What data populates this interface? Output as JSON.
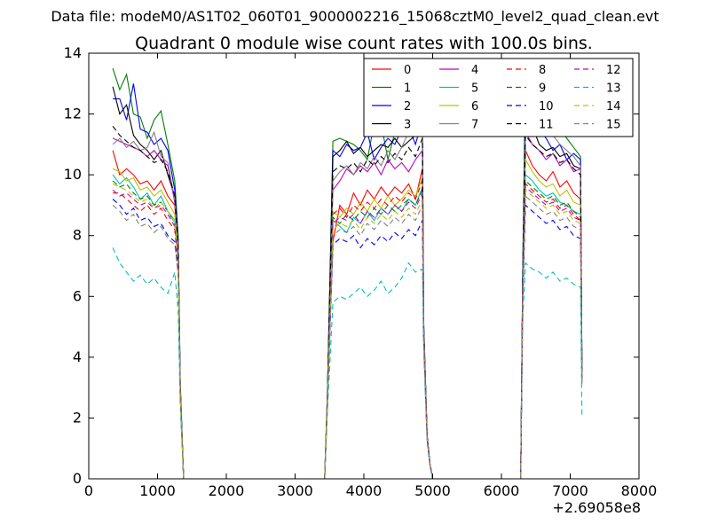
{
  "figure": {
    "suptitle": "Data file: modeM0/AS1T02_060T01_9000002216_15068cztM0_level2_quad_clean.evt"
  },
  "chart_data": {
    "type": "line",
    "title": "Quadrant 0 module wise count rates with 100.0s bins.",
    "xlabel": "",
    "ylabel": "",
    "xlim": [
      0,
      8000
    ],
    "ylim": [
      0,
      14
    ],
    "xticks": [
      0,
      1000,
      2000,
      3000,
      4000,
      5000,
      6000,
      7000,
      8000
    ],
    "yticks": [
      0,
      2,
      4,
      6,
      8,
      10,
      12,
      14
    ],
    "x_offset_label": "+2.69058e8",
    "grid": false,
    "legend": {
      "position": "top-right",
      "columns": 4
    },
    "x": [
      350,
      450,
      550,
      650,
      750,
      850,
      950,
      1050,
      1150,
      1250,
      1300,
      1330,
      1380,
      1500,
      2000,
      2500,
      3000,
      3430,
      3470,
      3550,
      3650,
      3750,
      3850,
      3950,
      4050,
      4150,
      4250,
      4350,
      4450,
      4550,
      4650,
      4750,
      4850,
      4870,
      4920,
      4960,
      5000,
      5050,
      5500,
      6000,
      6280,
      6310,
      6350,
      6450,
      6550,
      6650,
      6750,
      6850,
      6950,
      7050,
      7150,
      7170
    ],
    "series": [
      {
        "name": "0",
        "color": "#ff0000",
        "dash": false,
        "values": [
          10.8,
          10.0,
          10.2,
          10.0,
          9.7,
          9.8,
          9.5,
          9.8,
          9.3,
          9.0,
          7.5,
          3.0,
          0,
          0,
          0,
          0,
          0,
          0,
          2.5,
          7.8,
          9.0,
          8.7,
          9.4,
          9.0,
          9.5,
          9.2,
          9.6,
          9.3,
          9.6,
          9.4,
          9.7,
          9.2,
          10.2,
          5.0,
          1.4,
          0.5,
          0,
          0,
          0,
          0,
          0,
          6.5,
          10.8,
          10.3,
          10.0,
          9.8,
          10.1,
          9.6,
          9.8,
          9.4,
          9.2,
          3.5
        ]
      },
      {
        "name": "1",
        "color": "#008000",
        "dash": false,
        "values": [
          13.5,
          12.8,
          13.3,
          12.0,
          11.9,
          11.2,
          11.8,
          12.1,
          11.0,
          9.8,
          8.0,
          3.2,
          0,
          0,
          0,
          0,
          0,
          0,
          2.8,
          11.1,
          11.2,
          11.1,
          11.0,
          10.8,
          10.5,
          11.7,
          11.7,
          10.5,
          11.4,
          11.9,
          12.0,
          11.9,
          12.0,
          5.2,
          1.4,
          0.5,
          0,
          0,
          0,
          0,
          0,
          7.0,
          13.6,
          12.7,
          12.3,
          12.0,
          11.9,
          11.5,
          11.2,
          10.9,
          10.6,
          3.8
        ]
      },
      {
        "name": "2",
        "color": "#0000ff",
        "dash": false,
        "values": [
          12.5,
          12.5,
          11.8,
          13.0,
          11.5,
          11.4,
          11.0,
          11.2,
          10.8,
          9.5,
          7.8,
          3.1,
          0,
          0,
          0,
          0,
          0,
          0,
          2.8,
          10.8,
          10.6,
          11.0,
          10.8,
          10.9,
          11.4,
          10.5,
          10.9,
          11.2,
          11.0,
          11.5,
          11.6,
          11.0,
          11.8,
          5.1,
          1.4,
          0.5,
          0,
          0,
          0,
          0,
          0,
          6.8,
          12.5,
          12.0,
          11.5,
          11.2,
          10.8,
          11.0,
          10.5,
          10.7,
          10.5,
          3.7
        ]
      },
      {
        "name": "3",
        "color": "#000000",
        "dash": false,
        "values": [
          12.9,
          12.0,
          12.3,
          11.3,
          11.0,
          10.8,
          10.5,
          10.8,
          10.0,
          9.3,
          7.6,
          3.0,
          0,
          0,
          0,
          0,
          0,
          0,
          2.7,
          10.6,
          10.8,
          11.1,
          10.7,
          10.9,
          10.6,
          10.8,
          11.0,
          10.9,
          11.2,
          10.9,
          11.1,
          11.3,
          11.6,
          5.0,
          1.4,
          0.5,
          0,
          0,
          0,
          0,
          0,
          6.7,
          12.0,
          11.6,
          11.0,
          10.8,
          10.9,
          10.6,
          10.7,
          10.3,
          10.2,
          3.6
        ]
      },
      {
        "name": "4",
        "color": "#bf00bf",
        "dash": false,
        "values": [
          11.2,
          11.1,
          11.0,
          10.9,
          10.8,
          10.6,
          10.8,
          10.5,
          10.3,
          9.1,
          7.5,
          2.9,
          0,
          0,
          0,
          0,
          0,
          0,
          2.7,
          9.5,
          9.8,
          10.2,
          10.0,
          10.3,
          10.1,
          10.4,
          10.0,
          10.5,
          10.2,
          10.4,
          10.1,
          10.5,
          10.8,
          4.9,
          1.4,
          0.5,
          0,
          0,
          0,
          0,
          0,
          6.5,
          11.4,
          11.0,
          10.8,
          10.5,
          10.7,
          10.3,
          10.5,
          10.1,
          10.2,
          3.5
        ]
      },
      {
        "name": "5",
        "color": "#00bfbf",
        "dash": false,
        "values": [
          10.0,
          9.7,
          9.9,
          9.6,
          9.2,
          9.4,
          9.0,
          9.3,
          8.8,
          8.5,
          7.2,
          2.9,
          0,
          0,
          0,
          0,
          0,
          0,
          2.6,
          8.5,
          8.3,
          8.1,
          8.6,
          8.4,
          8.8,
          8.5,
          8.9,
          8.7,
          9.0,
          8.8,
          9.2,
          9.0,
          9.6,
          4.8,
          1.3,
          0.5,
          0,
          0,
          0,
          0,
          0,
          6.2,
          10.0,
          9.8,
          9.5,
          9.3,
          9.4,
          9.1,
          9.0,
          8.8,
          8.7,
          3.3
        ]
      },
      {
        "name": "6",
        "color": "#bfbf00",
        "dash": false,
        "values": [
          10.2,
          10.1,
          9.8,
          9.9,
          9.5,
          9.6,
          9.3,
          9.5,
          9.1,
          8.7,
          7.3,
          2.9,
          0,
          0,
          0,
          0,
          0,
          0,
          2.6,
          8.8,
          8.6,
          8.9,
          8.7,
          9.1,
          8.8,
          9.2,
          8.9,
          9.3,
          9.0,
          9.2,
          9.5,
          9.3,
          9.9,
          4.8,
          1.3,
          0.5,
          0,
          0,
          0,
          0,
          0,
          6.3,
          10.5,
          10.1,
          9.8,
          9.6,
          9.7,
          9.3,
          9.5,
          9.1,
          9.0,
          3.4
        ]
      },
      {
        "name": "7",
        "color": "#808080",
        "dash": false,
        "values": [
          11.0,
          11.2,
          10.9,
          11.1,
          10.8,
          10.9,
          11.4,
          10.6,
          10.4,
          9.2,
          7.6,
          3.0,
          0,
          0,
          0,
          0,
          0,
          0,
          2.7,
          9.8,
          10.1,
          10.3,
          10.0,
          10.4,
          10.2,
          10.6,
          10.3,
          10.8,
          10.5,
          10.9,
          11.4,
          12.1,
          11.8,
          5.0,
          1.4,
          0.5,
          0,
          0,
          0,
          0,
          0,
          6.6,
          11.8,
          13.0,
          12.4,
          11.8,
          11.3,
          11.0,
          10.8,
          10.6,
          10.3,
          3.6
        ]
      },
      {
        "name": "8",
        "color": "#ff0000",
        "dash": true,
        "values": [
          9.4,
          9.4,
          9.2,
          9.0,
          8.8,
          9.0,
          8.7,
          8.9,
          8.5,
          8.2,
          7.0,
          2.8,
          0,
          0,
          0,
          0,
          0,
          0,
          2.5,
          8.7,
          8.9,
          8.6,
          9.0,
          8.8,
          9.1,
          8.9,
          9.2,
          9.0,
          9.3,
          9.1,
          9.4,
          9.2,
          9.8,
          4.7,
          1.3,
          0.5,
          0,
          0,
          0,
          0,
          0,
          6.1,
          9.7,
          9.5,
          9.3,
          9.1,
          9.2,
          8.9,
          9.0,
          8.7,
          8.5,
          3.3
        ]
      },
      {
        "name": "9",
        "color": "#008000",
        "dash": true,
        "values": [
          9.8,
          9.6,
          9.7,
          9.4,
          9.2,
          9.3,
          9.0,
          9.1,
          8.8,
          8.4,
          7.1,
          2.8,
          0,
          0,
          0,
          0,
          0,
          0,
          2.5,
          8.6,
          8.4,
          8.7,
          8.5,
          8.8,
          8.6,
          8.9,
          8.7,
          9.0,
          8.8,
          9.0,
          9.2,
          9.0,
          9.5,
          4.7,
          1.3,
          0.5,
          0,
          0,
          0,
          0,
          0,
          6.0,
          9.8,
          9.6,
          9.4,
          9.2,
          9.3,
          9.0,
          9.1,
          8.8,
          8.6,
          3.2
        ]
      },
      {
        "name": "10",
        "color": "#0000ff",
        "dash": true,
        "values": [
          9.2,
          9.0,
          8.7,
          8.9,
          8.5,
          8.6,
          8.3,
          8.4,
          8.0,
          7.8,
          6.8,
          2.7,
          0,
          0,
          0,
          0,
          0,
          0,
          2.4,
          7.7,
          7.9,
          7.8,
          8.0,
          7.6,
          7.9,
          7.7,
          8.0,
          7.8,
          8.1,
          7.9,
          8.2,
          8.0,
          8.5,
          4.6,
          1.3,
          0.5,
          0,
          0,
          0,
          0,
          0,
          5.9,
          9.0,
          8.8,
          8.6,
          8.4,
          8.5,
          8.2,
          8.3,
          8.0,
          7.9,
          3.1
        ]
      },
      {
        "name": "11",
        "color": "#000000",
        "dash": true,
        "values": [
          11.6,
          11.3,
          11.1,
          10.9,
          10.8,
          10.6,
          10.4,
          10.5,
          10.1,
          9.3,
          7.6,
          3.0,
          0,
          0,
          0,
          0,
          0,
          0,
          2.7,
          10.1,
          10.3,
          10.2,
          10.4,
          10.1,
          10.5,
          10.3,
          10.6,
          10.4,
          10.7,
          10.5,
          10.9,
          10.6,
          11.2,
          4.9,
          1.4,
          0.5,
          0,
          0,
          0,
          0,
          0,
          6.6,
          11.3,
          11.0,
          10.8,
          10.6,
          10.7,
          10.4,
          10.5,
          10.2,
          10.0,
          3.5
        ]
      },
      {
        "name": "12",
        "color": "#bf00bf",
        "dash": true,
        "values": [
          9.5,
          9.3,
          9.4,
          9.2,
          9.0,
          9.1,
          8.9,
          9.0,
          8.7,
          8.3,
          7.0,
          2.8,
          0,
          0,
          0,
          0,
          0,
          0,
          2.5,
          8.4,
          8.6,
          8.5,
          8.7,
          8.4,
          8.8,
          8.6,
          8.9,
          8.7,
          9.0,
          8.8,
          9.1,
          8.9,
          9.4,
          4.7,
          1.3,
          0.5,
          0,
          0,
          0,
          0,
          0,
          6.0,
          9.6,
          9.4,
          9.2,
          9.0,
          9.1,
          8.8,
          8.9,
          8.6,
          8.5,
          3.2
        ]
      },
      {
        "name": "13",
        "color": "#00bfbf",
        "dash": true,
        "values": [
          7.6,
          7.1,
          6.8,
          6.5,
          6.7,
          6.4,
          6.6,
          6.3,
          6.1,
          6.8,
          5.5,
          2.4,
          0,
          0,
          0,
          0,
          0,
          0,
          2.2,
          5.8,
          6.0,
          5.9,
          6.1,
          6.3,
          6.0,
          6.2,
          6.5,
          6.1,
          6.3,
          6.6,
          7.1,
          6.8,
          6.9,
          4.2,
          1.2,
          0.4,
          0,
          0,
          0,
          0,
          0,
          5.2,
          7.1,
          6.9,
          6.8,
          6.6,
          6.8,
          6.5,
          6.6,
          6.4,
          6.3,
          2.1
        ]
      },
      {
        "name": "14",
        "color": "#bfbf00",
        "dash": true,
        "values": [
          9.7,
          9.6,
          9.5,
          9.3,
          9.1,
          9.2,
          8.9,
          9.1,
          8.8,
          8.4,
          7.1,
          2.8,
          0,
          0,
          0,
          0,
          0,
          0,
          2.5,
          8.2,
          8.4,
          8.3,
          8.5,
          8.2,
          8.6,
          8.4,
          8.7,
          8.5,
          8.8,
          8.6,
          8.9,
          8.7,
          9.2,
          4.7,
          1.3,
          0.5,
          0,
          0,
          0,
          0,
          0,
          6.0,
          9.5,
          9.3,
          9.1,
          8.9,
          9.0,
          8.7,
          8.8,
          8.5,
          8.4,
          3.2
        ]
      },
      {
        "name": "15",
        "color": "#808080",
        "dash": true,
        "values": [
          9.0,
          8.8,
          8.5,
          8.7,
          8.3,
          8.4,
          8.1,
          8.3,
          7.9,
          7.7,
          6.7,
          2.7,
          0,
          0,
          0,
          0,
          0,
          0,
          2.4,
          8.0,
          8.2,
          8.1,
          8.3,
          8.0,
          8.4,
          8.2,
          8.5,
          8.3,
          8.6,
          8.4,
          8.7,
          8.5,
          9.0,
          4.6,
          1.3,
          0.5,
          0,
          0,
          0,
          0,
          0,
          5.9,
          9.3,
          9.1,
          8.9,
          8.7,
          8.8,
          8.5,
          8.6,
          8.3,
          8.2,
          3.1
        ]
      }
    ]
  }
}
